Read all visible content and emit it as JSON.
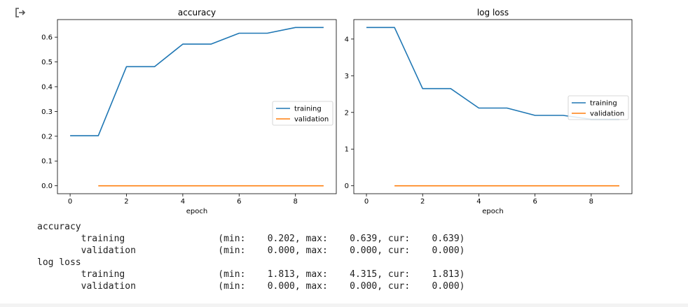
{
  "output": {
    "icon": "output-redirect-icon"
  },
  "chart_data": [
    {
      "type": "line",
      "title": "accuracy",
      "xlabel": "epoch",
      "ylabel": "",
      "xlim": [
        -0.45,
        9.45
      ],
      "ylim": [
        -0.032,
        0.671
      ],
      "xticks": [
        0,
        2,
        4,
        6,
        8
      ],
      "yticks": [
        0.0,
        0.1,
        0.2,
        0.3,
        0.4,
        0.5,
        0.6
      ],
      "xtick_labels": [
        "0",
        "2",
        "4",
        "6",
        "8"
      ],
      "ytick_labels": [
        "0.0",
        "0.1",
        "0.2",
        "0.3",
        "0.4",
        "0.5",
        "0.6"
      ],
      "legend_position": "center-right",
      "series": [
        {
          "name": "training",
          "color": "#1f77b4",
          "x": [
            0,
            1,
            2,
            3,
            4,
            5,
            6,
            7,
            8,
            9
          ],
          "y": [
            0.202,
            0.202,
            0.481,
            0.481,
            0.572,
            0.572,
            0.616,
            0.616,
            0.639,
            0.639
          ]
        },
        {
          "name": "validation",
          "color": "#ff7f0e",
          "x": [
            1,
            2,
            3,
            4,
            5,
            6,
            7,
            8,
            9
          ],
          "y": [
            0,
            0,
            0,
            0,
            0,
            0,
            0,
            0,
            0
          ]
        }
      ]
    },
    {
      "type": "line",
      "title": "log loss",
      "xlabel": "epoch",
      "ylabel": "",
      "xlim": [
        -0.45,
        9.45
      ],
      "ylim": [
        -0.216,
        4.531
      ],
      "xticks": [
        0,
        2,
        4,
        6,
        8
      ],
      "yticks": [
        0,
        1,
        2,
        3,
        4
      ],
      "xtick_labels": [
        "0",
        "2",
        "4",
        "6",
        "8"
      ],
      "ytick_labels": [
        "0",
        "1",
        "2",
        "3",
        "4"
      ],
      "legend_position": "center-right",
      "series": [
        {
          "name": "training",
          "color": "#1f77b4",
          "x": [
            0,
            1,
            2,
            3,
            4,
            5,
            6,
            7,
            8,
            9
          ],
          "y": [
            4.315,
            4.315,
            2.65,
            2.65,
            2.12,
            2.12,
            1.92,
            1.92,
            1.813,
            1.813
          ]
        },
        {
          "name": "validation",
          "color": "#ff7f0e",
          "x": [
            1,
            2,
            3,
            4,
            5,
            6,
            7,
            8,
            9
          ],
          "y": [
            0,
            0,
            0,
            0,
            0,
            0,
            0,
            0,
            0
          ]
        }
      ]
    }
  ],
  "log": [
    "accuracy",
    "\ttraining         \t (min:    0.202, max:    0.639, cur:    0.639)",
    "\tvalidation       \t (min:    0.000, max:    0.000, cur:    0.000)",
    "log loss",
    "\ttraining         \t (min:    1.813, max:    4.315, cur:    1.813)",
    "\tvalidation       \t (min:    0.000, max:    0.000, cur:    0.000)"
  ]
}
